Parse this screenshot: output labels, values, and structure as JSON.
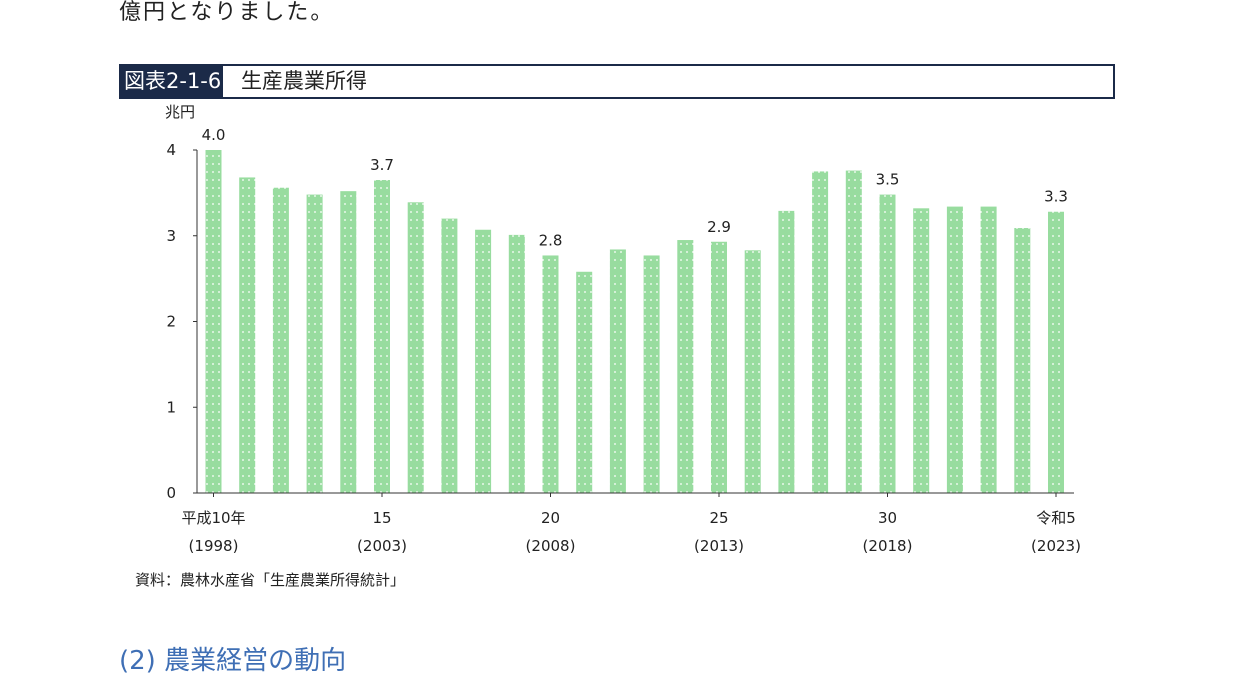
{
  "intro_text": "億円となりました。",
  "figure": {
    "label": "図表2-1-6",
    "title": "生産農業所得"
  },
  "chart_data": {
    "type": "bar",
    "ylabel": "兆円",
    "ylim": [
      0,
      4
    ],
    "yticks": [
      "0",
      "1",
      "2",
      "3",
      "4"
    ],
    "x": [
      1998,
      1999,
      2000,
      2001,
      2002,
      2003,
      2004,
      2005,
      2006,
      2007,
      2008,
      2009,
      2010,
      2011,
      2012,
      2013,
      2014,
      2015,
      2016,
      2017,
      2018,
      2019,
      2020,
      2021,
      2022,
      2023
    ],
    "values": [
      4.0,
      3.68,
      3.56,
      3.48,
      3.52,
      3.65,
      3.39,
      3.2,
      3.07,
      3.01,
      2.77,
      2.58,
      2.84,
      2.77,
      2.95,
      2.93,
      2.83,
      3.29,
      3.75,
      3.76,
      3.48,
      3.32,
      3.34,
      3.34,
      3.09,
      3.28
    ],
    "data_labels": [
      {
        "index": 0,
        "text": "4.0"
      },
      {
        "index": 5,
        "text": "3.7"
      },
      {
        "index": 10,
        "text": "2.8"
      },
      {
        "index": 15,
        "text": "2.9"
      },
      {
        "index": 20,
        "text": "3.5"
      },
      {
        "index": 25,
        "text": "3.3"
      }
    ],
    "xtick_labels": [
      {
        "index": 0,
        "era": "平成10年",
        "year": "(1998)"
      },
      {
        "index": 5,
        "era": "15",
        "year": "(2003)"
      },
      {
        "index": 10,
        "era": "20",
        "year": "(2008)"
      },
      {
        "index": 15,
        "era": "25",
        "year": "(2013)"
      },
      {
        "index": 20,
        "era": "30",
        "year": "(2018)"
      },
      {
        "index": 25,
        "era": "令和5",
        "year": "(2023)"
      }
    ],
    "bar_color": "#98dc9f",
    "dot_color": "#ffffff",
    "grid": false
  },
  "source_note": "資料：農林水産省「生産農業所得統計」",
  "next_section_heading": "(2) 農業経営の動向"
}
